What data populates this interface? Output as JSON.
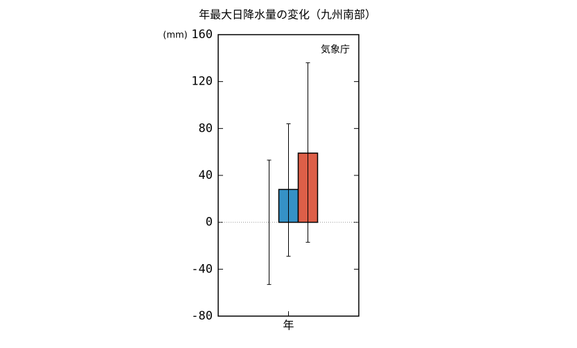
{
  "chart_data": {
    "type": "bar",
    "title": "年最大日降水量の変化（九州南部）",
    "y_label": "(mm)",
    "annotation": "気象庁",
    "categories": [
      "年"
    ],
    "series": [
      {
        "color": "#888888",
        "values": [
          0
        ],
        "lows": [
          -53
        ],
        "highs": [
          53
        ]
      },
      {
        "color": "#3591c6",
        "values": [
          28
        ],
        "lows": [
          -29
        ],
        "highs": [
          84
        ]
      },
      {
        "color": "#dd5f48",
        "values": [
          59
        ],
        "lows": [
          -17
        ],
        "highs": [
          136
        ]
      }
    ],
    "ylim": [
      -80,
      160
    ],
    "yticks": [
      -80,
      -40,
      0,
      40,
      80,
      120,
      160
    ],
    "zero_line": true
  }
}
